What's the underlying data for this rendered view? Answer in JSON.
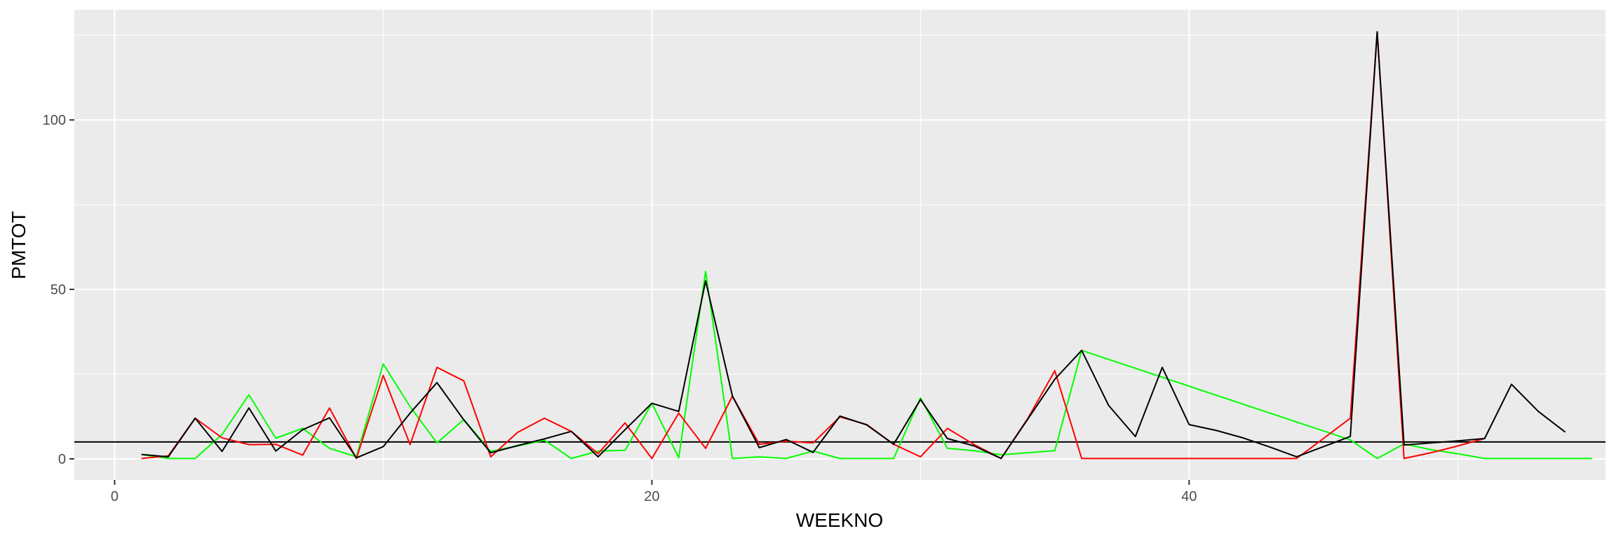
{
  "chart_data": {
    "type": "line",
    "title": "",
    "xlabel": "WEEKNO",
    "ylabel": "PMTOT",
    "xlim": [
      -1.5,
      55.5
    ],
    "ylim": [
      -6.2,
      132.5
    ],
    "x_ticks": [
      0,
      20,
      40
    ],
    "y_ticks": [
      0,
      50,
      100
    ],
    "x_minor": [
      10,
      30,
      50
    ],
    "y_minor": [
      25,
      75,
      125
    ],
    "grid": true,
    "legend": "none",
    "panel_background": "#ebebeb",
    "hline": {
      "y": 5,
      "color": "#000000"
    },
    "series": [
      {
        "color": "#00ff00",
        "x": [
          1,
          2,
          3,
          4,
          5,
          6,
          7,
          8,
          9,
          10,
          11,
          12,
          13,
          14,
          15,
          16,
          17,
          18,
          19,
          20,
          21,
          22,
          23,
          24,
          25,
          26,
          27,
          28,
          29,
          30,
          31,
          32,
          33,
          34,
          35,
          36,
          46,
          47,
          48,
          49,
          50,
          51,
          52,
          53,
          54,
          55
        ],
        "y": [
          1.3,
          0.1,
          0.1,
          7.2,
          18.9,
          6.1,
          9.0,
          3.1,
          0.6,
          28.0,
          15.4,
          4.7,
          11.6,
          2.2,
          3.8,
          5.5,
          0.1,
          2.3,
          2.5,
          16.4,
          0.3,
          55.3,
          0.1,
          0.6,
          0.1,
          2.3,
          0.1,
          0.1,
          0.1,
          18.0,
          3.1,
          2.4,
          1.2,
          1.8,
          2.4,
          32.0,
          5.6,
          0.1,
          4.4,
          2.7,
          1.5,
          0.1,
          0.1,
          0.1,
          0.1,
          0.1
        ]
      },
      {
        "color": "#ff0000",
        "x": [
          1,
          2,
          3,
          4,
          5,
          6,
          7,
          8,
          9,
          10,
          11,
          12,
          13,
          14,
          15,
          16,
          17,
          18,
          19,
          20,
          21,
          22,
          23,
          24,
          25,
          26,
          27,
          28,
          29,
          30,
          31,
          32,
          33,
          34,
          35,
          36,
          37,
          38,
          39,
          40,
          41,
          42,
          43,
          44,
          45,
          46,
          47,
          48,
          49,
          50,
          51
        ],
        "y": [
          0.1,
          0.9,
          12.0,
          6.2,
          4.2,
          4.3,
          1.1,
          15.0,
          0.1,
          24.6,
          4.2,
          27.0,
          23.0,
          0.6,
          7.8,
          12.0,
          8.1,
          1.5,
          10.6,
          0.1,
          13.5,
          3.1,
          18.5,
          4.3,
          5.2,
          4.7,
          12.4,
          10.1,
          4.3,
          0.6,
          9.0,
          4.2,
          0.1,
          12.0,
          26.0,
          0.1,
          0.1,
          0.1,
          0.1,
          0.1,
          0.1,
          0.1,
          0.1,
          0.1,
          6.0,
          12.0,
          126.0,
          0.1,
          1.8,
          3.8,
          6.0
        ]
      },
      {
        "color": "#000000",
        "x": [
          1,
          2,
          3,
          4,
          5,
          6,
          7,
          8,
          9,
          10,
          11,
          12,
          13,
          14,
          15,
          16,
          17,
          18,
          19,
          20,
          21,
          22,
          23,
          24,
          25,
          26,
          27,
          28,
          29,
          30,
          31,
          32,
          33,
          34,
          35,
          36,
          37,
          38,
          39,
          40,
          41,
          42,
          43,
          44,
          45,
          46,
          47,
          48,
          49,
          50,
          51,
          52,
          53,
          54
        ],
        "y": [
          1.3,
          0.6,
          12.0,
          2.2,
          15.0,
          2.3,
          8.6,
          12.1,
          0.3,
          3.6,
          13.5,
          22.5,
          11.5,
          1.8,
          3.9,
          5.9,
          8.1,
          0.6,
          8.6,
          16.4,
          14.0,
          52.5,
          18.5,
          3.3,
          5.7,
          1.9,
          12.6,
          10.0,
          4.3,
          17.5,
          6.0,
          3.8,
          0.1,
          11.8,
          23.5,
          32.0,
          15.8,
          6.6,
          27.0,
          10.1,
          8.4,
          6.2,
          3.5,
          0.6,
          3.6,
          6.6,
          126.0,
          4.1,
          4.7,
          5.3,
          6.0,
          22.0,
          14.0,
          7.9
        ]
      }
    ]
  }
}
